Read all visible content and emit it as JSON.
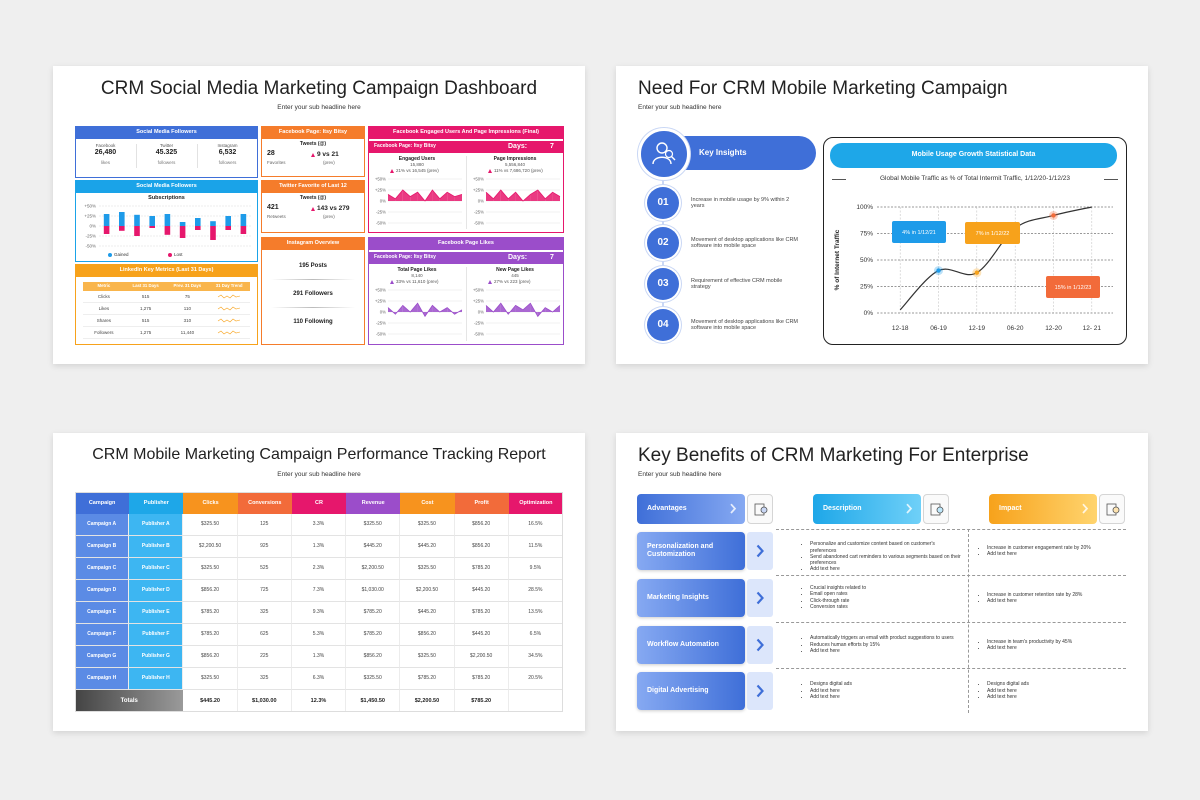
{
  "dashboard": {
    "title": "CRM Social Media Marketing Campaign Dashboard",
    "subtitle": "Enter your sub headline here",
    "followers": {
      "title": "Social Media Followers",
      "items": [
        {
          "platform": "Facebook",
          "value": "26,480",
          "unit": "likes"
        },
        {
          "platform": "Twitter",
          "value": "45.325",
          "unit": "followers"
        },
        {
          "platform": "Instagram",
          "value": "6,532",
          "unit": "followers"
        }
      ]
    },
    "subscriptions": {
      "title": "Social Media Followers",
      "chart": {
        "type": "bar",
        "title": "Subscriptions",
        "ylim": [
          -50,
          50
        ],
        "yticks": [
          {
            "value": 50,
            "label": "+50%"
          },
          {
            "value": 25,
            "label": "+25%"
          },
          {
            "value": 0,
            "label": "0%"
          },
          {
            "value": -25,
            "label": "-25%"
          },
          {
            "value": -50,
            "label": "-50%"
          }
        ],
        "series": [
          {
            "name": "Gained",
            "color": "#1e9be9",
            "values": [
              30,
              35,
              28,
              25,
              30,
              10,
              20,
              12,
              25,
              30
            ]
          },
          {
            "name": "Lost",
            "color": "#e6176c",
            "values": [
              -20,
              -12,
              -25,
              -5,
              -22,
              -30,
              -10,
              -35,
              -10,
              -20
            ]
          }
        ]
      }
    },
    "linkedin": {
      "title": "LinkedIn Key Metrics (Last 31 Days)",
      "columns": [
        "Metric",
        "Last 31 Days",
        "Prev. 31 Days",
        "31 Day Trend"
      ],
      "rows": [
        [
          "Clicks",
          "515",
          "75"
        ],
        [
          "Likes",
          "1,275",
          "110"
        ],
        [
          "Shares",
          "515",
          "310"
        ],
        [
          "Followers",
          "1,275",
          "11,440"
        ]
      ]
    },
    "facebook_page": {
      "title": "Facebook Page: Itsy Bitsy",
      "metric": "Tweets (@)",
      "value": "28",
      "unit": "Favorites",
      "change": "9 vs 21",
      "note": "(prev)"
    },
    "twitter": {
      "title": "Twitter Favorite of Last 12",
      "metric": "Tweets (@)",
      "value": "421",
      "unit": "Retweets",
      "change": "143 vs 279",
      "note": "(prev)"
    },
    "instagram": {
      "title": "Instagram Overview",
      "items": [
        "195 Posts",
        "291 Followers",
        "110 Following"
      ]
    },
    "engaged": {
      "title": "Facebook Engaged Users And Page Impressions (Final)",
      "page": "Facebook Page: Itsy Bitsy",
      "days_label": "Days:",
      "days": "7",
      "color": "#e6176c",
      "ylim": [
        -50,
        50
      ],
      "yticks": [
        {
          "value": 50,
          "label": "+50%"
        },
        {
          "value": 25,
          "label": "+25%"
        },
        {
          "value": 0,
          "label": "0%"
        },
        {
          "value": -25,
          "label": "-25%"
        },
        {
          "value": -50,
          "label": "-50%"
        }
      ],
      "charts": [
        {
          "type": "area",
          "title": "Engaged Users",
          "value": "15,880",
          "change": "21% vs 16,545 (prev)",
          "values": [
            15,
            5,
            25,
            10,
            20,
            0,
            25,
            5,
            20,
            10,
            15
          ]
        },
        {
          "type": "area",
          "title": "Page Impressions",
          "value": "5,556,840",
          "change": "11% vs 7,686,720 (prev)",
          "values": [
            20,
            5,
            25,
            5,
            20,
            0,
            15,
            25,
            5,
            20,
            10
          ]
        }
      ]
    },
    "page_likes": {
      "title": "Facebook Page Likes",
      "page": "Facebook Page: Itsy Bitsy",
      "days_label": "Days:",
      "days": "7",
      "color": "#9b4dca",
      "ylim": [
        -50,
        50
      ],
      "yticks": [
        {
          "value": 50,
          "label": "+50%"
        },
        {
          "value": 25,
          "label": "+25%"
        },
        {
          "value": 0,
          "label": "0%"
        },
        {
          "value": -25,
          "label": "-25%"
        },
        {
          "value": -50,
          "label": "-50%"
        }
      ],
      "charts": [
        {
          "type": "area",
          "title": "Total Page Likes",
          "value": "8,140",
          "change": "33% vs 11,610 (prev)",
          "values": [
            10,
            -5,
            15,
            0,
            20,
            -10,
            15,
            0,
            10,
            -5,
            5
          ]
        },
        {
          "type": "area",
          "title": "New Page Likes",
          "value": "445",
          "change": "27% vs 223 (prev)",
          "values": [
            15,
            0,
            20,
            -5,
            15,
            5,
            20,
            -10,
            10,
            0,
            15
          ]
        }
      ]
    }
  },
  "mobile": {
    "title": "Need For CRM Mobile Marketing Campaign",
    "subtitle": "Enter your sub headline here",
    "insights_title": "Key Insights",
    "insights": [
      {
        "number": "01",
        "text": "Increase in mobile usage by 9% within 2 years"
      },
      {
        "number": "02",
        "text": "Movement of desktop applications like CRM software into mobile space"
      },
      {
        "number": "03",
        "text": "Requirement of effective CRM mobile strategy"
      },
      {
        "number": "04",
        "text": "Movement of desktop applications like CRM software into mobile space"
      }
    ],
    "panel_title": "Mobile Usage Growth Statistical Data",
    "chart": {
      "type": "line",
      "title": "Global Mobile Traffic as % of Total Intermit Traffic, 1/12/20-1/12/23",
      "y_label": "% of Internet Traffic",
      "categories": [
        "12-18",
        "06-19",
        "12-19",
        "06-20",
        "12-20",
        "12- 21"
      ],
      "values": [
        3,
        40,
        38,
        80,
        92,
        100
      ],
      "color": "#333333",
      "ylim": [
        0,
        100
      ],
      "yticks": [
        {
          "value": 0,
          "label": "0%"
        },
        {
          "value": 25,
          "label": "25%"
        },
        {
          "value": 50,
          "label": "50%"
        },
        {
          "value": 75,
          "label": "75%"
        },
        {
          "value": 100,
          "label": "100%"
        }
      ],
      "grid": true,
      "annotations": [
        {
          "text": "4% in 1/12/21",
          "color": "#1e9be9"
        },
        {
          "text": "7% in 1/12/22",
          "color": "#f7a21b"
        },
        {
          "text": "15% in 1/12/23",
          "color": "#f26b3a"
        }
      ]
    }
  },
  "report": {
    "title": "CRM Mobile Marketing Campaign Performance Tracking Report",
    "subtitle": "Enter your sub headline here",
    "columns": [
      "Campaign",
      "Publisher",
      "Clicks",
      "Conversions",
      "CR",
      "Revenue",
      "Cost",
      "Profit",
      "Optimization"
    ],
    "column_colors": [
      "#3f6fd8",
      "#1ea7e8",
      "#f7931e",
      "#f26b3a",
      "#e6176c",
      "#9b4dca",
      "#f7931e",
      "#f26b3a",
      "#e6176c"
    ],
    "rows": [
      [
        "Campaign A",
        "Publisher A",
        "$325.50",
        "125",
        "3.3%",
        "$325.50",
        "$325.50",
        "$856.20",
        "16.5%"
      ],
      [
        "Campaign B",
        "Publisher B",
        "$2,200.50",
        "925",
        "1.3%",
        "$445.20",
        "$445.20",
        "$856.20",
        "11.5%"
      ],
      [
        "Campaign C",
        "Publisher C",
        "$325.50",
        "525",
        "2.3%",
        "$2,200.50",
        "$325.50",
        "$785.20",
        "9.5%"
      ],
      [
        "Campaign D",
        "Publisher D",
        "$856.20",
        "725",
        "7.3%",
        "$1,030.00",
        "$2,200.50",
        "$445.20",
        "28.5%"
      ],
      [
        "Campaign E",
        "Publisher E",
        "$785.20",
        "325",
        "9.3%",
        "$785.20",
        "$445.20",
        "$785.20",
        "13.5%"
      ],
      [
        "Campaign F",
        "Publisher F",
        "$785.20",
        "625",
        "5.3%",
        "$785.20",
        "$856.20",
        "$445.20",
        "6.5%"
      ],
      [
        "Campaign G",
        "Publisher G",
        "$856.20",
        "225",
        "1.3%",
        "$856.20",
        "$325.50",
        "$2,200.50",
        "34.5%"
      ],
      [
        "Campaign H",
        "Publisher H",
        "$325.50",
        "325",
        "6.3%",
        "$325.50",
        "$785.20",
        "$785.20",
        "20.5%"
      ]
    ],
    "totals_label": "Totals",
    "totals": [
      "$445.20",
      "$1,030.00",
      "12.3%",
      "$1,450.50",
      "$2,200.50",
      "$785.20"
    ]
  },
  "benefits": {
    "title": "Key Benefits of CRM Marketing For Enterprise",
    "subtitle": "Enter your sub headline here",
    "headers": [
      "Advantages",
      "Description",
      "Impact"
    ],
    "rows": [
      {
        "advantage": "Personalization and Customization",
        "description": [
          "Personalize and customize content based on customer's preferences",
          "Send abandoned cart reminders to various segments based on their preferences",
          "Add text here"
        ],
        "impact": [
          "Increase in customer engagement rate by 20%",
          "Add text here"
        ]
      },
      {
        "advantage": "Marketing Insights",
        "description": [
          "Crucial insights related to",
          "Email open rates",
          "Click-through rate",
          "Conversion rates"
        ],
        "impact": [
          "Increase in customer retention rate by 28%",
          "Add text here"
        ]
      },
      {
        "advantage": "Workflow Automation",
        "description": [
          "Automatically triggers an email with product suggestions to users",
          "Reduces human efforts by 15%",
          "Add text here"
        ],
        "impact": [
          "Increase in team's productivity by 45%",
          "Add text here"
        ]
      },
      {
        "advantage": "Digital Advertising",
        "description": [
          "Designs digital ads",
          "Add text here",
          "Add text here"
        ],
        "impact": [
          "Designs digital ads",
          "Add text here",
          "Add text here"
        ]
      }
    ]
  }
}
